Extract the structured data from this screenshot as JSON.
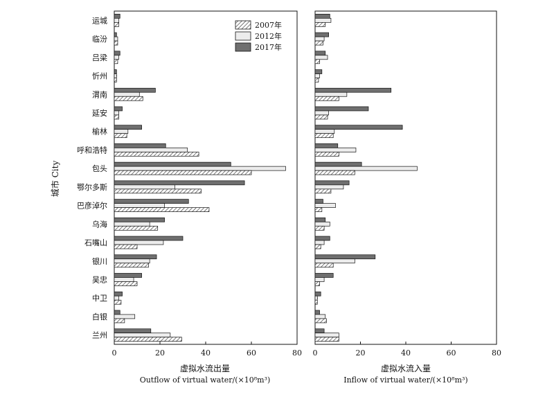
{
  "chart_data": [
    {
      "type": "bar",
      "orientation": "horizontal",
      "panel": "outflow",
      "title": "",
      "xlabel_cn": "虚拟水流出量",
      "xlabel_en": "Outflow of virtual water/(×10⁸m³)",
      "ylabel": "城市 City",
      "xlim": [
        0,
        80
      ],
      "xticks": [
        "0",
        "20",
        "40",
        "60",
        "80"
      ],
      "legend": {
        "placement": "top-right-inside",
        "entries": [
          "2007年",
          "2012年",
          "2017年"
        ]
      },
      "categories": [
        "运城",
        "临汾",
        "吕梁",
        "忻州",
        "渭南",
        "延安",
        "榆林",
        "呼和浩特",
        "包头",
        "鄂尔多斯",
        "巴彦淖尔",
        "乌海",
        "石嘴山",
        "银川",
        "吴忠",
        "中卫",
        "白银",
        "兰州"
      ],
      "series": [
        {
          "name": "2007年",
          "values": [
            2,
            1.5,
            1.5,
            1,
            12.5,
            2,
            5.5,
            37,
            60,
            38,
            41.5,
            19,
            10,
            15,
            10,
            3,
            4.5,
            29.5
          ]
        },
        {
          "name": "2012年",
          "values": [
            2,
            1.5,
            2,
            1,
            11,
            2,
            6,
            32,
            75,
            26.5,
            22,
            15.5,
            21.5,
            15.5,
            8.5,
            2,
            9,
            24.5
          ]
        },
        {
          "name": "2017年",
          "values": [
            2.5,
            1,
            2.5,
            1,
            18,
            3.5,
            12,
            22.5,
            51,
            57,
            32.5,
            22,
            30,
            18.5,
            12,
            3.5,
            2.5,
            16
          ]
        }
      ]
    },
    {
      "type": "bar",
      "orientation": "horizontal",
      "panel": "inflow",
      "title": "",
      "xlabel_cn": "虚拟水流入量",
      "xlabel_en": "Inflow of virtual water/(×10⁸m³)",
      "ylabel": "",
      "xlim": [
        0,
        80
      ],
      "xticks": [
        "0",
        "20",
        "40",
        "60",
        "80"
      ],
      "categories": [
        "运城",
        "临汾",
        "吕梁",
        "忻州",
        "渭南",
        "延安",
        "榆林",
        "呼和浩特",
        "包头",
        "鄂尔多斯",
        "巴彦淖尔",
        "乌海",
        "石嘴山",
        "银川",
        "吴忠",
        "中卫",
        "白银",
        "兰州"
      ],
      "series": [
        {
          "name": "2007年",
          "values": [
            4.5,
            3.5,
            2,
            1.5,
            10.5,
            5.5,
            8,
            10.5,
            17.5,
            7,
            3,
            4,
            2.5,
            8,
            2,
            1,
            5,
            10.5
          ]
        },
        {
          "name": "2012年",
          "values": [
            7,
            4,
            5.5,
            2,
            14,
            6,
            8.5,
            18,
            45,
            12.5,
            9,
            6.5,
            4,
            17.5,
            4,
            1,
            4.5,
            10.5
          ]
        },
        {
          "name": "2017年",
          "values": [
            6.5,
            6,
            4.5,
            3,
            33.5,
            23.5,
            38.5,
            10,
            20.5,
            15,
            3.5,
            4.5,
            6.5,
            26.5,
            8,
            2.5,
            2,
            4
          ]
        }
      ]
    }
  ],
  "colors": {
    "s2007": "#ffffff",
    "s2012": "#ececec",
    "s2017": "#6f6f6f",
    "axis": "#111111"
  }
}
